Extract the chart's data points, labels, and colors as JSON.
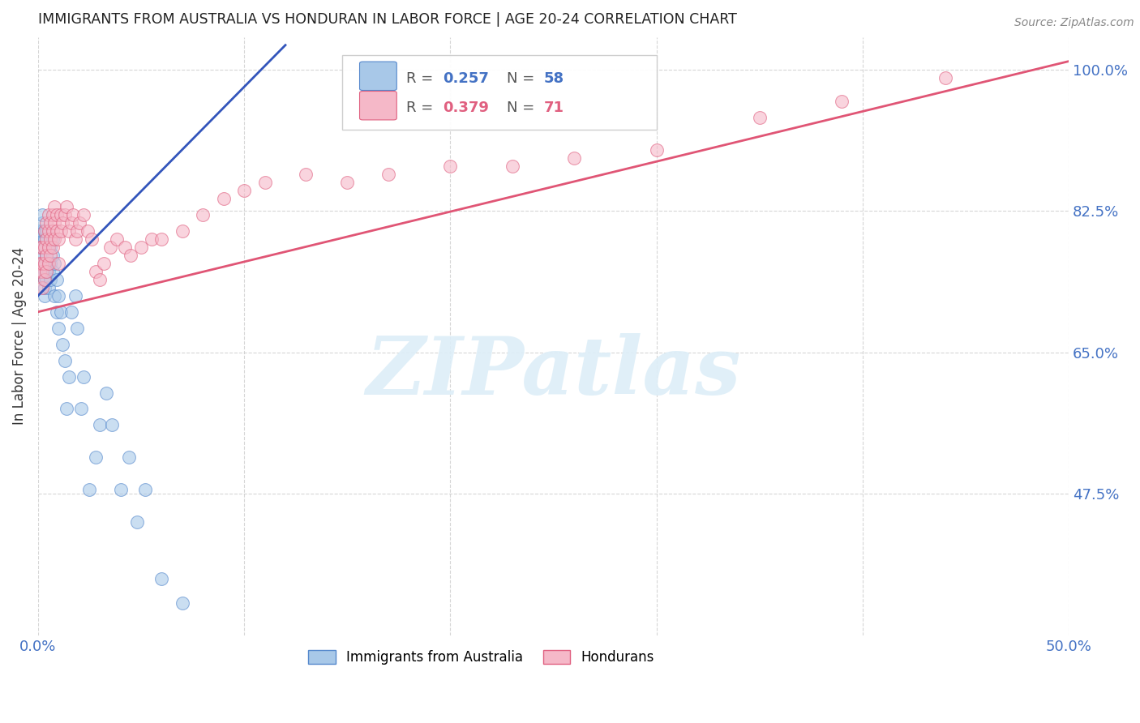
{
  "title": "IMMIGRANTS FROM AUSTRALIA VS HONDURAN IN LABOR FORCE | AGE 20-24 CORRELATION CHART",
  "source": "Source: ZipAtlas.com",
  "ylabel": "In Labor Force | Age 20-24",
  "xlim": [
    0.0,
    0.5
  ],
  "ylim": [
    0.3,
    1.04
  ],
  "xticks": [
    0.0,
    0.1,
    0.2,
    0.3,
    0.4,
    0.5
  ],
  "xticklabels": [
    "0.0%",
    "",
    "",
    "",
    "",
    "50.0%"
  ],
  "yticks": [
    0.475,
    0.65,
    0.825,
    1.0
  ],
  "yticklabels": [
    "47.5%",
    "65.0%",
    "82.5%",
    "100.0%"
  ],
  "grid_color": "#cccccc",
  "background_color": "#ffffff",
  "australia_color": "#a8c8e8",
  "honduran_color": "#f5b8c8",
  "australia_edge_color": "#5588cc",
  "honduran_edge_color": "#e06080",
  "australia_line_color": "#3355bb",
  "honduran_line_color": "#e05575",
  "watermark_text": "ZIPatlas",
  "watermark_color": "#ddeef8",
  "aus_line_x0": 0.0,
  "aus_line_y0": 0.72,
  "aus_line_x1": 0.12,
  "aus_line_y1": 1.03,
  "hon_line_x0": 0.0,
  "hon_line_y0": 0.7,
  "hon_line_x1": 0.5,
  "hon_line_y1": 1.01,
  "australia_x": [
    0.001,
    0.001,
    0.001,
    0.002,
    0.002,
    0.002,
    0.002,
    0.002,
    0.002,
    0.002,
    0.003,
    0.003,
    0.003,
    0.003,
    0.003,
    0.003,
    0.003,
    0.004,
    0.004,
    0.004,
    0.004,
    0.005,
    0.005,
    0.005,
    0.005,
    0.006,
    0.006,
    0.006,
    0.007,
    0.007,
    0.007,
    0.008,
    0.008,
    0.009,
    0.009,
    0.01,
    0.01,
    0.011,
    0.012,
    0.013,
    0.014,
    0.015,
    0.016,
    0.018,
    0.019,
    0.021,
    0.022,
    0.025,
    0.028,
    0.03,
    0.033,
    0.036,
    0.04,
    0.044,
    0.048,
    0.052,
    0.06,
    0.07
  ],
  "australia_y": [
    0.75,
    0.78,
    0.8,
    0.76,
    0.77,
    0.78,
    0.79,
    0.8,
    0.81,
    0.82,
    0.72,
    0.73,
    0.74,
    0.75,
    0.76,
    0.79,
    0.8,
    0.74,
    0.75,
    0.77,
    0.8,
    0.73,
    0.75,
    0.76,
    0.78,
    0.74,
    0.76,
    0.78,
    0.75,
    0.77,
    0.79,
    0.72,
    0.76,
    0.7,
    0.74,
    0.68,
    0.72,
    0.7,
    0.66,
    0.64,
    0.58,
    0.62,
    0.7,
    0.72,
    0.68,
    0.58,
    0.62,
    0.48,
    0.52,
    0.56,
    0.6,
    0.56,
    0.48,
    0.52,
    0.44,
    0.48,
    0.37,
    0.34
  ],
  "honduran_x": [
    0.001,
    0.001,
    0.001,
    0.002,
    0.002,
    0.002,
    0.002,
    0.003,
    0.003,
    0.003,
    0.003,
    0.004,
    0.004,
    0.004,
    0.004,
    0.005,
    0.005,
    0.005,
    0.005,
    0.006,
    0.006,
    0.006,
    0.007,
    0.007,
    0.007,
    0.008,
    0.008,
    0.008,
    0.009,
    0.009,
    0.01,
    0.01,
    0.011,
    0.011,
    0.012,
    0.013,
    0.014,
    0.015,
    0.016,
    0.017,
    0.018,
    0.019,
    0.02,
    0.022,
    0.024,
    0.026,
    0.028,
    0.03,
    0.032,
    0.035,
    0.038,
    0.042,
    0.045,
    0.05,
    0.055,
    0.06,
    0.07,
    0.08,
    0.09,
    0.1,
    0.11,
    0.13,
    0.15,
    0.17,
    0.2,
    0.23,
    0.26,
    0.3,
    0.35,
    0.39,
    0.44
  ],
  "honduran_y": [
    0.75,
    0.76,
    0.78,
    0.73,
    0.75,
    0.76,
    0.78,
    0.74,
    0.76,
    0.78,
    0.8,
    0.75,
    0.77,
    0.79,
    0.81,
    0.76,
    0.78,
    0.8,
    0.82,
    0.77,
    0.79,
    0.81,
    0.78,
    0.8,
    0.82,
    0.79,
    0.81,
    0.83,
    0.8,
    0.82,
    0.76,
    0.79,
    0.8,
    0.82,
    0.81,
    0.82,
    0.83,
    0.8,
    0.81,
    0.82,
    0.79,
    0.8,
    0.81,
    0.82,
    0.8,
    0.79,
    0.75,
    0.74,
    0.76,
    0.78,
    0.79,
    0.78,
    0.77,
    0.78,
    0.79,
    0.79,
    0.8,
    0.82,
    0.84,
    0.85,
    0.86,
    0.87,
    0.86,
    0.87,
    0.88,
    0.88,
    0.89,
    0.9,
    0.94,
    0.96,
    0.99
  ]
}
